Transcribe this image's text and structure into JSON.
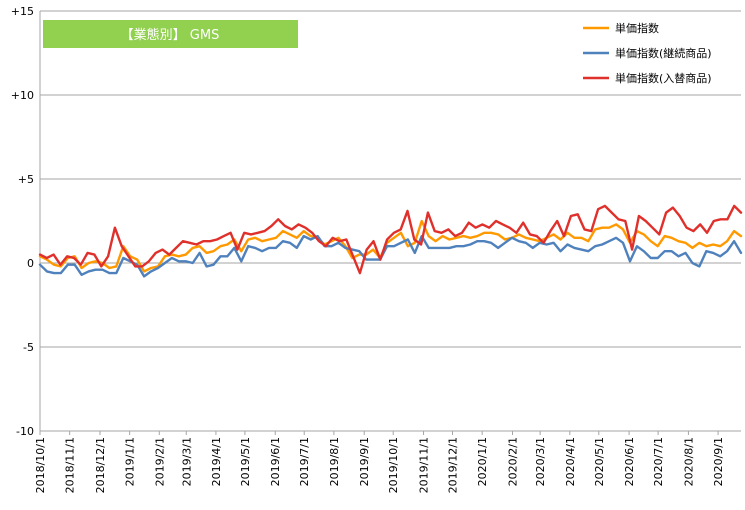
{
  "chart_data": {
    "type": "line",
    "title": "【業態別】 GMS",
    "title_box_color": "#92d050",
    "ylim": [
      -10,
      15
    ],
    "y_ticks": [
      {
        "value": 15,
        "label": "+15"
      },
      {
        "value": 10,
        "label": "+10"
      },
      {
        "value": 5,
        "label": "+5"
      },
      {
        "value": 0,
        "label": "0"
      },
      {
        "value": -5,
        "label": "-5"
      },
      {
        "value": -10,
        "label": "-10"
      }
    ],
    "gridlines": "horizontal",
    "legend_position": "top-right",
    "x_tick_labels": [
      "2018/10/1",
      "2018/11/1",
      "2018/12/1",
      "2019/1/1",
      "2019/2/1",
      "2019/3/1",
      "2019/4/1",
      "2019/5/1",
      "2019/6/1",
      "2019/7/1",
      "2019/8/1",
      "2019/9/1",
      "2019/10/1",
      "2019/11/1",
      "2019/12/1",
      "2020/1/1",
      "2020/2/1",
      "2020/3/1",
      "2020/4/1",
      "2020/5/1",
      "2020/6/1",
      "2020/7/1",
      "2020/8/1",
      "2020/9/1"
    ],
    "x_tick_weeks": [
      0,
      4.4,
      8.9,
      13.3,
      17.7,
      21.7,
      26.1,
      30.4,
      34.9,
      39.2,
      43.6,
      48.1,
      52.4,
      56.9,
      61.2,
      65.6,
      70.1,
      74.2,
      78.6,
      82.9,
      87.4,
      91.7,
      96.2,
      100.6
    ],
    "x_range_weeks": [
      0,
      104
    ],
    "series": [
      {
        "name": "単価指数",
        "color": "#ff9900",
        "values": [
          0.4,
          0.2,
          -0.1,
          -0.2,
          0.3,
          0.4,
          -0.3,
          0.0,
          0.1,
          0.0,
          -0.3,
          -0.2,
          1.0,
          0.4,
          0.2,
          -0.5,
          -0.3,
          -0.2,
          0.4,
          0.5,
          0.4,
          0.5,
          0.9,
          1.0,
          0.6,
          0.7,
          1.0,
          1.1,
          1.4,
          0.7,
          1.4,
          1.5,
          1.3,
          1.4,
          1.5,
          1.9,
          1.7,
          1.5,
          1.9,
          1.6,
          1.5,
          1.1,
          1.3,
          1.5,
          1.0,
          0.3,
          0.5,
          0.5,
          0.8,
          0.3,
          1.2,
          1.5,
          1.8,
          1.0,
          1.2,
          2.5,
          1.6,
          1.3,
          1.6,
          1.4,
          1.5,
          1.6,
          1.5,
          1.6,
          1.8,
          1.8,
          1.7,
          1.4,
          1.5,
          1.7,
          1.5,
          1.4,
          1.3,
          1.5,
          1.7,
          1.4,
          1.8,
          1.5,
          1.5,
          1.3,
          2.0,
          2.1,
          2.1,
          2.3,
          2.0,
          1.2,
          1.9,
          1.7,
          1.3,
          1.0,
          1.6,
          1.5,
          1.3,
          1.2,
          0.9,
          1.2,
          1.0,
          1.1,
          1.0,
          1.3,
          1.9,
          1.6
        ]
      },
      {
        "name": "単価指数(継続商品)",
        "color": "#4f81bd",
        "values": [
          -0.1,
          -0.5,
          -0.6,
          -0.6,
          -0.1,
          -0.1,
          -0.7,
          -0.5,
          -0.4,
          -0.4,
          -0.6,
          -0.6,
          0.3,
          0.1,
          -0.1,
          -0.8,
          -0.5,
          -0.3,
          0.0,
          0.3,
          0.1,
          0.1,
          0.0,
          0.6,
          -0.2,
          -0.1,
          0.4,
          0.4,
          0.9,
          0.1,
          1.0,
          0.9,
          0.7,
          0.9,
          0.9,
          1.3,
          1.2,
          0.9,
          1.6,
          1.4,
          1.6,
          1.0,
          1.0,
          1.2,
          0.9,
          0.8,
          0.7,
          0.2,
          0.2,
          0.2,
          1.0,
          1.0,
          1.2,
          1.4,
          0.6,
          1.6,
          0.9,
          0.9,
          0.9,
          0.9,
          1.0,
          1.0,
          1.1,
          1.3,
          1.3,
          1.2,
          0.9,
          1.2,
          1.5,
          1.3,
          1.2,
          0.9,
          1.2,
          1.1,
          1.2,
          0.7,
          1.1,
          0.9,
          0.8,
          0.7,
          1.0,
          1.1,
          1.3,
          1.5,
          1.2,
          0.1,
          1.0,
          0.7,
          0.3,
          0.3,
          0.7,
          0.7,
          0.4,
          0.6,
          0.0,
          -0.2,
          0.7,
          0.6,
          0.4,
          0.7,
          1.3,
          0.6
        ]
      },
      {
        "name": "単価指数(入替商品)",
        "color": "#e0302b",
        "values": [
          0.5,
          0.3,
          0.5,
          -0.1,
          0.4,
          0.3,
          -0.1,
          0.6,
          0.5,
          -0.2,
          0.4,
          2.1,
          1.0,
          0.4,
          -0.2,
          -0.2,
          0.1,
          0.6,
          0.8,
          0.5,
          0.9,
          1.3,
          1.2,
          1.1,
          1.3,
          1.3,
          1.4,
          1.6,
          1.8,
          0.8,
          1.8,
          1.7,
          1.8,
          1.9,
          2.2,
          2.6,
          2.2,
          2.0,
          2.3,
          2.1,
          1.8,
          1.3,
          1.0,
          1.5,
          1.3,
          1.4,
          0.4,
          -0.6,
          0.8,
          1.3,
          0.2,
          1.4,
          1.8,
          2.0,
          3.1,
          1.4,
          1.1,
          3.0,
          1.9,
          1.8,
          2.0,
          1.6,
          1.8,
          2.4,
          2.1,
          2.3,
          2.1,
          2.5,
          2.3,
          2.1,
          1.8,
          2.4,
          1.7,
          1.6,
          1.2,
          1.9,
          2.5,
          1.6,
          2.8,
          2.9,
          2.0,
          1.9,
          3.2,
          3.4,
          3.0,
          2.6,
          2.5,
          0.8,
          2.8,
          2.5,
          2.1,
          1.7,
          3.0,
          3.3,
          2.8,
          2.1,
          1.9,
          2.3,
          1.8,
          2.5,
          2.6,
          2.6,
          3.4,
          3.0
        ]
      }
    ]
  }
}
